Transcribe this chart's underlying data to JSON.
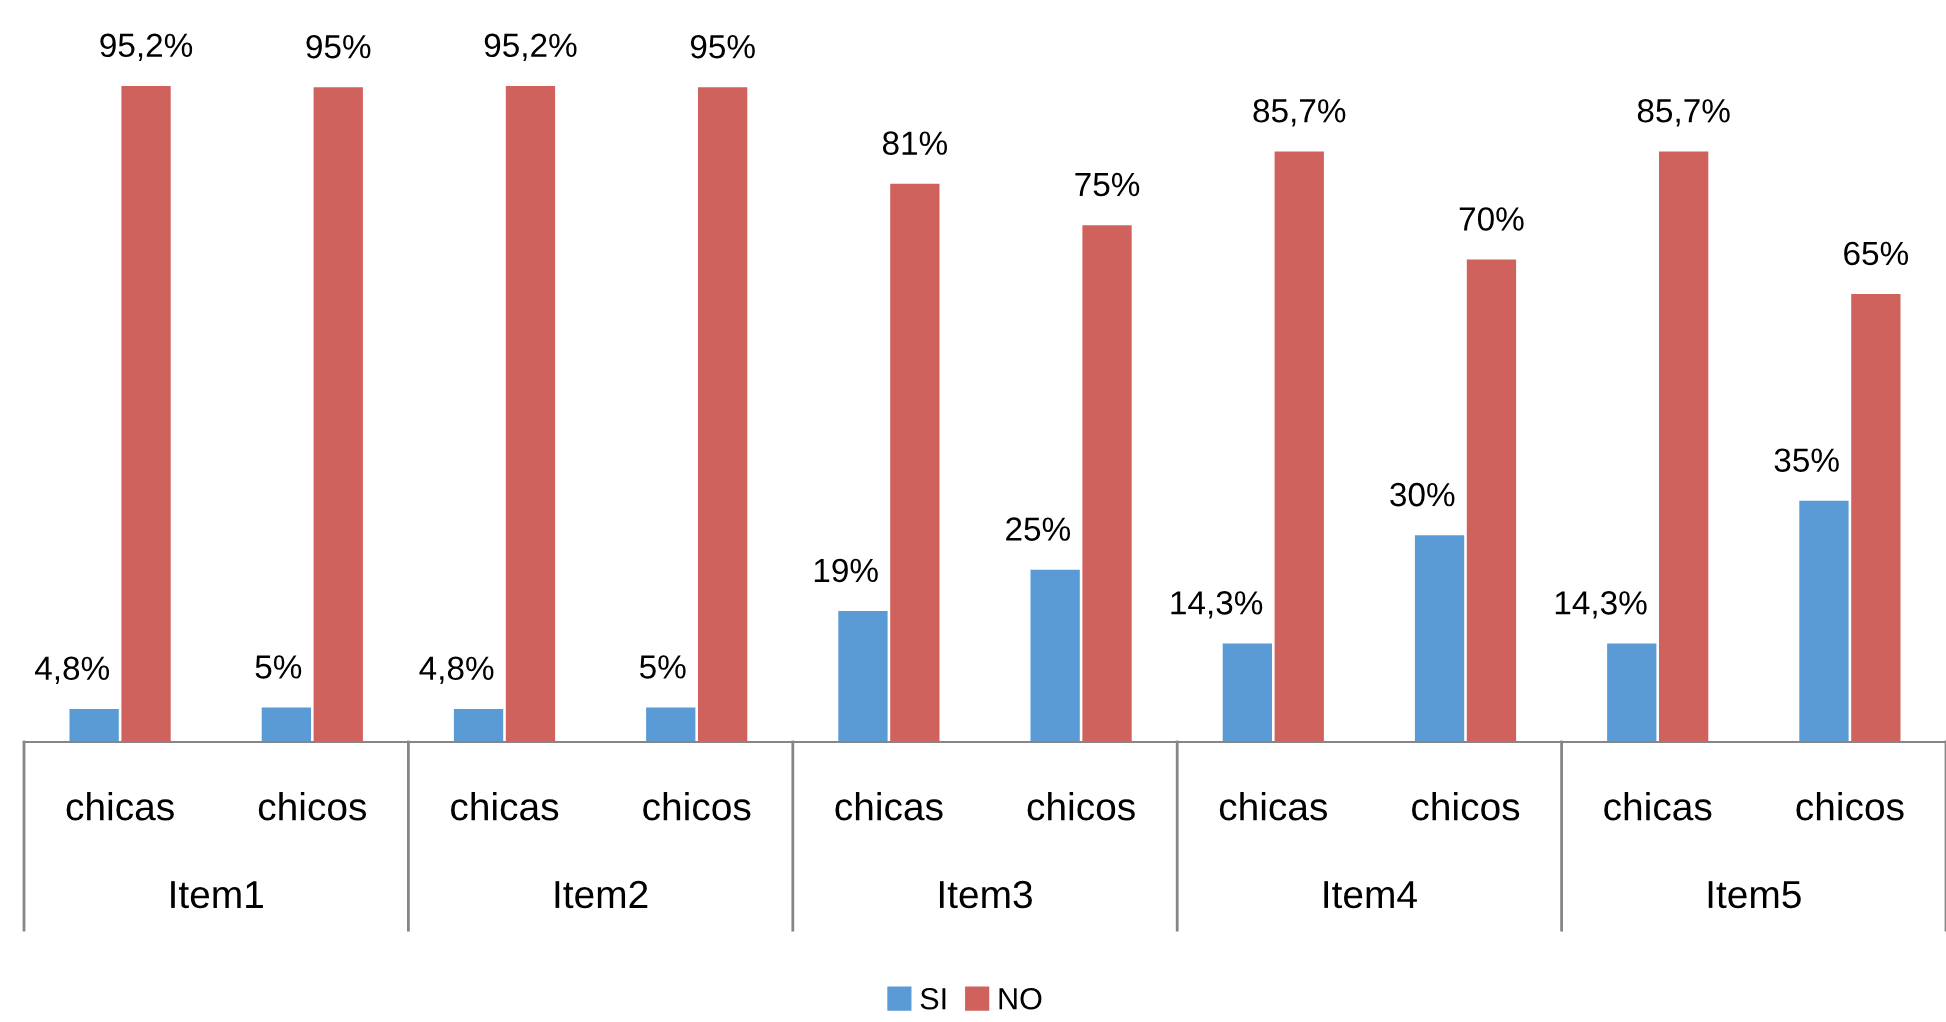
{
  "chart_data": {
    "type": "bar",
    "categories": [
      "chicas",
      "chicos",
      "chicas",
      "chicos",
      "chicas",
      "chicos",
      "chicas",
      "chicos",
      "chicas",
      "chicos"
    ],
    "series": [
      {
        "name": "SI",
        "color": "#5b9bd5",
        "values": [
          4.8,
          5,
          4.8,
          5,
          19,
          25,
          14.3,
          30,
          14.3,
          35
        ],
        "value_labels": [
          "4,8%",
          "5%",
          "4,8%",
          "5%",
          "19%",
          "25%",
          "14,3%",
          "30%",
          "14,3%",
          "35%"
        ]
      },
      {
        "name": "NO",
        "color": "#d0625e",
        "values": [
          95.2,
          95,
          95.2,
          95,
          81,
          75,
          85.7,
          70,
          85.7,
          65
        ],
        "value_labels": [
          "95,2%",
          "95%",
          "95,2%",
          "95%",
          "81%",
          "75%",
          "85,7%",
          "70%",
          "85,7%",
          "65%"
        ]
      }
    ],
    "annotations": [
      "Item1",
      "Item2",
      "Item3",
      "Item4",
      "Item5"
    ],
    "legend": "bottom"
  }
}
